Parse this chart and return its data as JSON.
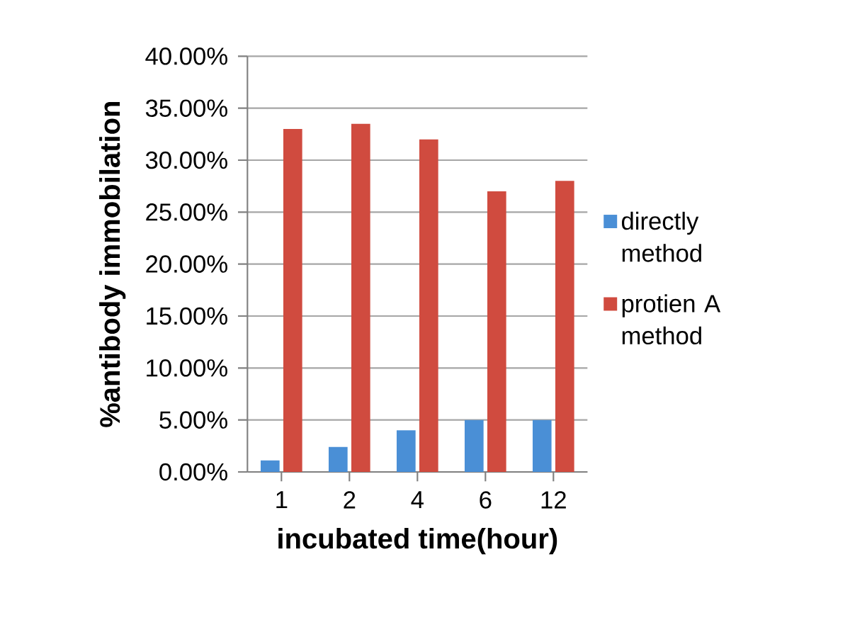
{
  "chart_data": {
    "type": "bar",
    "xlabel": "incubated time(hour)",
    "ylabel": "%antibody immobilation",
    "categories": [
      "1",
      "2",
      "4",
      "6",
      "12"
    ],
    "series": [
      {
        "name": "directly method",
        "color": "#4a8fd6",
        "values": [
          1.1,
          2.4,
          4.0,
          5.0,
          5.0
        ]
      },
      {
        "name": "protien A method",
        "color": "#d04b3f",
        "values": [
          33.0,
          33.5,
          32.0,
          27.0,
          28.0
        ]
      }
    ],
    "ylim": [
      0,
      40
    ],
    "yticks": [
      {
        "value": 0,
        "label": "0.00%"
      },
      {
        "value": 5,
        "label": "5.00%"
      },
      {
        "value": 10,
        "label": "10.00%"
      },
      {
        "value": 15,
        "label": "15.00%"
      },
      {
        "value": 20,
        "label": "20.00%"
      },
      {
        "value": 25,
        "label": "25.00%"
      },
      {
        "value": 30,
        "label": "30.00%"
      },
      {
        "value": 35,
        "label": "35.00%"
      },
      {
        "value": 40,
        "label": "40.00%"
      }
    ],
    "grid": "y",
    "legend": "right"
  }
}
